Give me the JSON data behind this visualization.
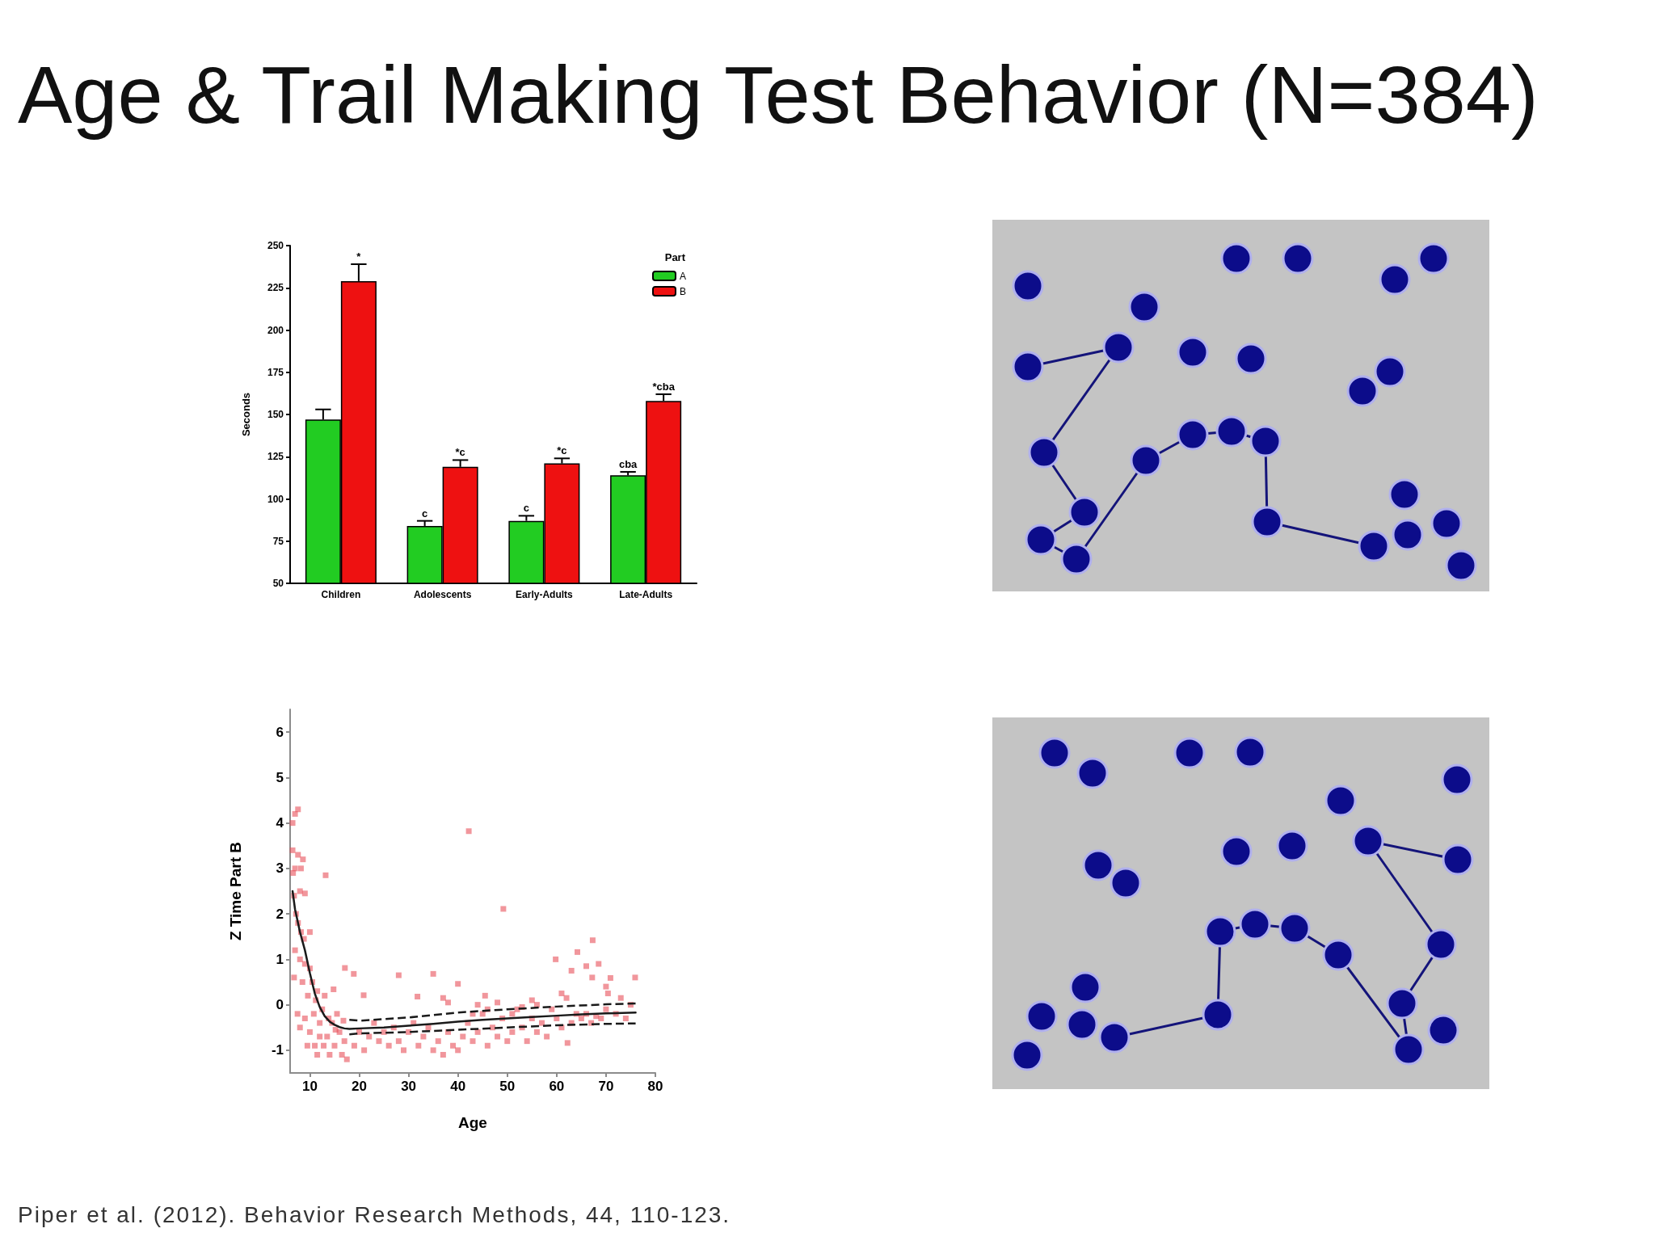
{
  "chart_data": [
    {
      "type": "bar",
      "title": "Age & Trail Making Test Behavior (N=384)",
      "ylabel": "Seconds",
      "legend_title": "Part",
      "legend": "top right",
      "categories": [
        "Children",
        "Adolescents",
        "Early-Adults",
        "Late-Adults"
      ],
      "ylim": [
        50,
        250
      ],
      "yticks": [
        50,
        75,
        100,
        125,
        150,
        175,
        200,
        225,
        250
      ],
      "series": [
        {
          "name": "A",
          "color": "#22cc22",
          "values": [
            147,
            84,
            87,
            114
          ],
          "errors": [
            [
              147,
              153
            ],
            [
              84,
              87
            ],
            [
              87,
              90
            ],
            [
              114,
              116
            ]
          ],
          "value_labels": [
            null,
            "c",
            "c",
            "cba"
          ]
        },
        {
          "name": "B",
          "color": "#ee1111",
          "values": [
            229,
            119,
            121,
            158
          ],
          "errors": [
            [
              229,
              239
            ],
            [
              119,
              123
            ],
            [
              121,
              124
            ],
            [
              158,
              162
            ]
          ],
          "value_labels": [
            "*",
            "*c",
            "*c",
            "*cba"
          ]
        }
      ]
    },
    {
      "type": "scatter",
      "xlabel": "Age",
      "ylabel": "Z Time Part B",
      "xlim": [
        6,
        80
      ],
      "xticks": [
        10,
        20,
        30,
        40,
        50,
        60,
        70,
        80
      ],
      "ylim": [
        -1.5,
        6.5
      ],
      "yticks": [
        -1,
        0,
        1,
        2,
        3,
        4,
        5,
        6
      ],
      "annotations": [
        "Piper et al. (2012). Behavior Research Methods, 44, 110-123."
      ],
      "series": [
        {
          "type": "scatter",
          "marker": "square",
          "color": "#e8505a",
          "x": [
            6.5,
            7,
            7.6,
            6.5,
            7.6,
            8.6,
            7,
            8.2,
            6.6,
            13.2,
            8,
            9,
            6.8,
            7.2,
            7.6,
            8.2,
            10,
            8.8,
            7,
            8,
            9,
            10,
            6.8,
            8.5,
            9.6,
            10.5,
            11.2,
            7.5,
            9,
            10,
            11,
            12,
            12.5,
            13,
            14.8,
            13.5,
            14,
            14.5,
            15,
            15.5,
            16,
            16.5,
            17,
            17.5,
            11.5,
            12.8,
            11.5,
            12,
            13.8,
            15.2,
            16.8,
            9.5,
            8,
            10.8,
            17.1,
            18.9,
            20.9,
            28,
            35,
            40,
            42.2,
            49.2,
            59.8,
            64.2,
            67.3,
            66,
            68.5,
            63,
            67.2,
            70.9,
            75.9,
            70,
            70.4,
            73,
            61,
            62,
            31.8,
            37,
            38,
            45.5,
            55,
            62.2,
            19,
            20,
            21,
            22,
            23,
            24,
            25,
            26,
            27,
            28,
            29,
            30,
            31,
            32,
            33,
            34,
            35,
            36,
            37,
            38,
            39,
            40,
            41,
            42,
            43,
            44,
            45,
            46,
            47,
            48,
            49,
            50,
            51,
            52,
            53,
            54,
            55,
            56,
            57,
            58,
            60,
            61,
            63,
            64,
            65,
            66,
            67,
            68,
            69,
            70,
            72,
            74,
            75,
            43,
            44,
            46,
            48,
            51,
            53,
            56,
            59
          ],
          "values": [
            4.0,
            4.2,
            4.3,
            3.4,
            3.3,
            3.2,
            3.0,
            3.0,
            2.9,
            2.85,
            2.5,
            2.45,
            2.4,
            2.0,
            1.8,
            1.6,
            1.6,
            1.45,
            1.2,
            1.0,
            0.9,
            0.8,
            0.6,
            0.5,
            0.2,
            0.5,
            0.1,
            -0.2,
            -0.3,
            -0.6,
            -0.9,
            -0.4,
            -0.1,
            0.2,
            0.34,
            -0.7,
            -1.1,
            -0.4,
            -0.9,
            -0.2,
            -0.6,
            -1.1,
            -0.8,
            -1.2,
            -1.1,
            -0.9,
            0.3,
            -0.7,
            -0.3,
            -0.55,
            -0.35,
            -0.9,
            -0.5,
            -0.2,
            0.81,
            0.68,
            0.21,
            0.65,
            0.68,
            0.46,
            3.82,
            2.11,
            1.0,
            1.16,
            1.42,
            0.85,
            0.9,
            0.75,
            0.6,
            0.59,
            0.6,
            0.4,
            0.25,
            0.15,
            0.25,
            0.15,
            0.18,
            0.15,
            0.05,
            0.2,
            0.1,
            -0.84,
            -0.9,
            -0.6,
            -1.0,
            -0.7,
            -0.4,
            -0.8,
            -0.6,
            -0.9,
            -0.5,
            -0.8,
            -1.0,
            -0.6,
            -0.4,
            -0.9,
            -0.7,
            -0.5,
            -1.0,
            -0.8,
            -1.1,
            -0.6,
            -0.9,
            -1.0,
            -0.7,
            -0.4,
            -0.8,
            -0.6,
            -0.2,
            -0.9,
            -0.5,
            -0.7,
            -0.3,
            -0.8,
            -0.6,
            -0.1,
            -0.5,
            -0.8,
            -0.3,
            -0.6,
            -0.4,
            -0.7,
            -0.3,
            -0.5,
            -0.4,
            -0.2,
            -0.3,
            -0.2,
            -0.4,
            -0.25,
            -0.3,
            -0.1,
            -0.2,
            -0.3,
            0.0,
            -0.2,
            0.0,
            -0.1,
            0.05,
            -0.2,
            -0.05,
            0.0,
            -0.1
          ]
        },
        {
          "type": "line",
          "marker": "none",
          "line_style": "solid",
          "color": "#1a1a1a",
          "x": [
            6.5,
            7,
            8,
            9,
            10,
            11,
            12,
            13,
            14,
            15,
            16,
            17,
            18,
            20,
            25,
            30,
            35,
            40,
            45,
            50,
            55,
            60,
            65,
            70,
            76
          ],
          "values": [
            2.5,
            2.1,
            1.6,
            1.2,
            0.7,
            0.25,
            -0.05,
            -0.25,
            -0.37,
            -0.44,
            -0.49,
            -0.52,
            -0.53,
            -0.52,
            -0.5,
            -0.46,
            -0.42,
            -0.37,
            -0.33,
            -0.3,
            -0.27,
            -0.24,
            -0.21,
            -0.19,
            -0.17
          ]
        },
        {
          "type": "line",
          "marker": "none",
          "line_style": "dashed",
          "color": "#1a1a1a",
          "x": [
            18,
            20,
            30,
            40,
            50,
            60,
            70,
            76
          ],
          "values": [
            -0.33,
            -0.35,
            -0.28,
            -0.17,
            -0.1,
            -0.04,
            0.01,
            0.03
          ]
        },
        {
          "type": "line",
          "marker": "none",
          "line_style": "dashed",
          "color": "#1a1a1a",
          "x": [
            18,
            20,
            30,
            40,
            50,
            60,
            70,
            76
          ],
          "values": [
            -0.65,
            -0.63,
            -0.6,
            -0.55,
            -0.5,
            -0.45,
            -0.42,
            -0.41
          ]
        }
      ]
    }
  ]
}
